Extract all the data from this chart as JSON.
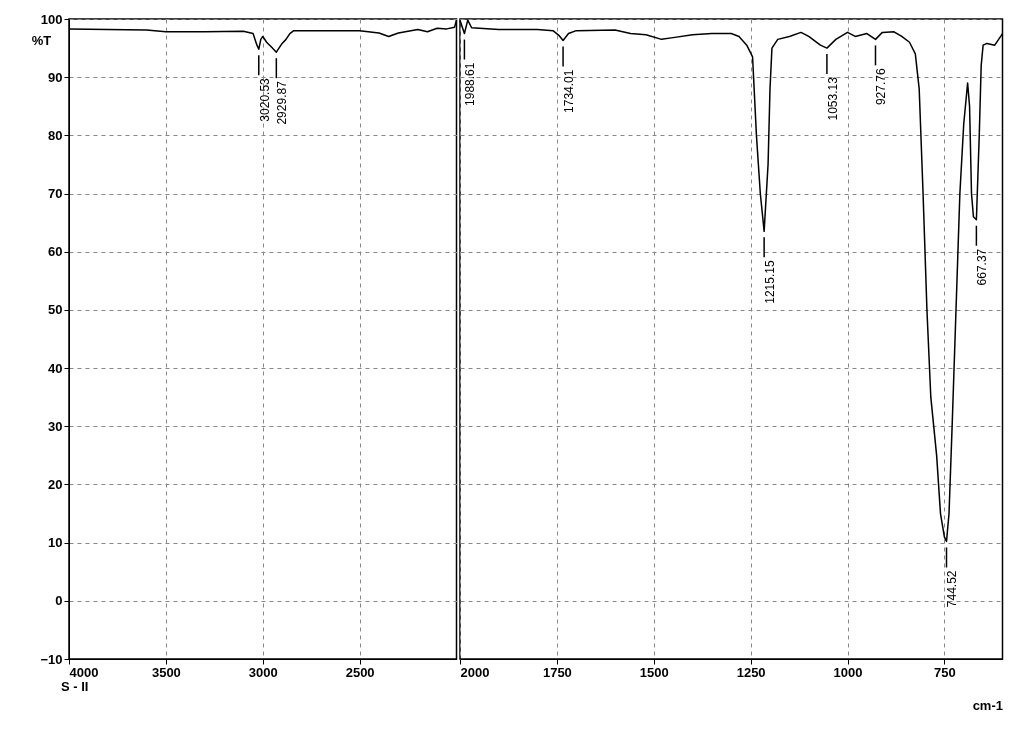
{
  "chart_data": [
    {
      "type": "line",
      "ylabel": "%T",
      "xlim": [
        4000,
        2000
      ],
      "xticks": [
        4000,
        3500,
        3000,
        2500
      ],
      "ylim": [
        -10,
        100
      ],
      "yticks": [
        -10,
        0,
        10,
        20,
        30,
        40,
        50,
        60,
        70,
        80,
        90,
        100
      ],
      "grid": true,
      "marker": "none",
      "line_style": "solid",
      "x": [
        4000,
        3800,
        3600,
        3500,
        3300,
        3100,
        3050,
        3030,
        3020.53,
        3010,
        3000,
        2980,
        2950,
        2929.87,
        2900,
        2880,
        2860,
        2840,
        2700,
        2500,
        2400,
        2350,
        2300,
        2200,
        2150,
        2100,
        2050,
        2010,
        2000
      ],
      "series": [
        {
          "color": "#000000",
          "values": [
            98.3,
            98.2,
            98.1,
            97.8,
            97.8,
            97.9,
            97.5,
            95.5,
            94.8,
            96.5,
            97.0,
            96.0,
            95.0,
            94.3,
            95.8,
            96.5,
            97.5,
            98.0,
            98.0,
            98.0,
            97.6,
            97.0,
            97.6,
            98.2,
            97.8,
            98.4,
            98.3,
            98.6,
            99.8
          ]
        }
      ],
      "annotations": [
        {
          "text": "3020.53",
          "x": 3020.53,
          "y": 94.8
        },
        {
          "text": "2929.87",
          "x": 2929.87,
          "y": 94.3
        },
        "S - II"
      ]
    },
    {
      "type": "line",
      "xlabel": "cm-1",
      "xlim": [
        2000,
        600
      ],
      "xticks": [
        2000,
        1750,
        1500,
        1250,
        1000,
        750
      ],
      "ylim": [
        -10,
        100
      ],
      "yticks": [
        -10,
        0,
        10,
        20,
        30,
        40,
        50,
        60,
        70,
        80,
        90,
        100
      ],
      "tick_labels": "x",
      "grid": true,
      "marker": "none",
      "line_style": "solid",
      "x": [
        2000,
        1988.61,
        1980,
        1970,
        1900,
        1800,
        1760,
        1745,
        1734.01,
        1720,
        1700,
        1600,
        1560,
        1520,
        1480,
        1450,
        1400,
        1350,
        1300,
        1280,
        1260,
        1245,
        1235,
        1225,
        1215.15,
        1205,
        1200,
        1195,
        1180,
        1150,
        1120,
        1100,
        1070,
        1053.13,
        1030,
        1000,
        980,
        950,
        927.76,
        910,
        880,
        860,
        840,
        825,
        815,
        805,
        795,
        785,
        770,
        760,
        750,
        744.52,
        738,
        730,
        720,
        710,
        700,
        690,
        685,
        680,
        675,
        667.37,
        660,
        655,
        650,
        640,
        620,
        610,
        600
      ],
      "series": [
        {
          "color": "#000000",
          "values": [
            99.8,
            97.5,
            99.8,
            98.5,
            98.2,
            98.2,
            98.0,
            97.2,
            96.3,
            97.5,
            98.0,
            98.1,
            97.5,
            97.3,
            96.5,
            96.8,
            97.3,
            97.5,
            97.5,
            97.0,
            95.5,
            93.5,
            80,
            70,
            63.5,
            75,
            88,
            95,
            96.5,
            97.0,
            97.7,
            97.0,
            95.5,
            95.0,
            96.5,
            97.7,
            97.0,
            97.5,
            96.5,
            97.7,
            97.8,
            97.0,
            96.0,
            94.0,
            88,
            70,
            50,
            35,
            25,
            15,
            11,
            10.2,
            15,
            30,
            50,
            70,
            82,
            89,
            85,
            70,
            66,
            65.5,
            80,
            92,
            95.5,
            95.8,
            95.5,
            96.5,
            97.5
          ]
        }
      ],
      "annotations": [
        {
          "text": "1988.61",
          "x": 1988.61,
          "y": 97.5
        },
        {
          "text": "1734.01",
          "x": 1734.01,
          "y": 96.3
        },
        {
          "text": "1215.15",
          "x": 1215.15,
          "y": 63.5
        },
        {
          "text": "1053.13",
          "x": 1053.13,
          "y": 95.0
        },
        {
          "text": "927.76",
          "x": 927.76,
          "y": 96.5
        },
        {
          "text": "744.52",
          "x": 744.52,
          "y": 10.2
        },
        {
          "text": "667.37",
          "x": 667.37,
          "y": 65.5
        }
      ]
    }
  ]
}
